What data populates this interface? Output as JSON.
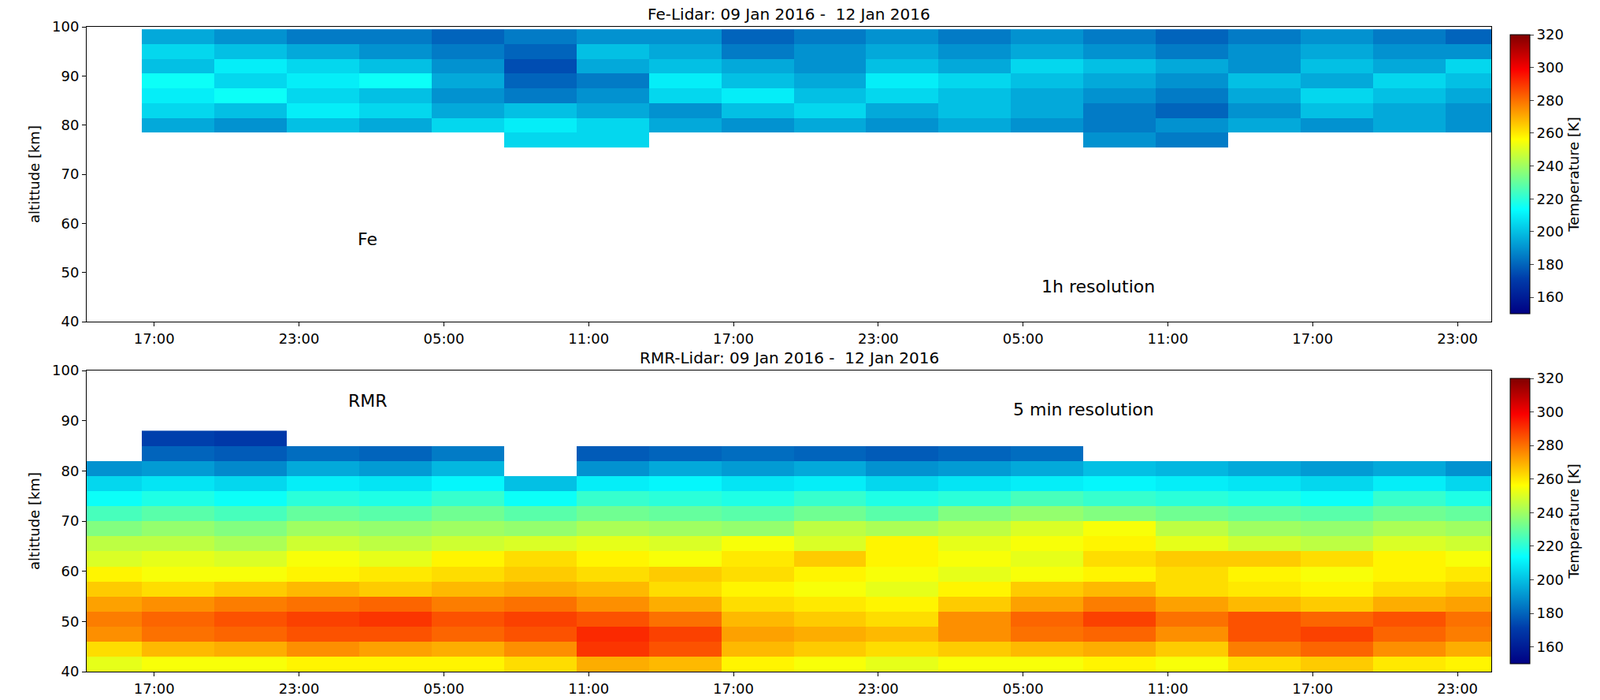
{
  "chart_data": [
    {
      "type": "heatmap",
      "title": "Fe-Lidar: 09 Jan 2016 -  12 Jan 2016",
      "y_label": "altittude [km]",
      "color": "Jet",
      "grid": false,
      "annotations": [
        "Fe",
        "1h resolution"
      ],
      "xlim": [
        14.2,
        72.4
      ],
      "xticks": [
        {
          "value": 17,
          "label": "17:00"
        },
        {
          "value": 23,
          "label": "23:00"
        },
        {
          "value": 29,
          "label": "05:00"
        },
        {
          "value": 35,
          "label": "11:00"
        },
        {
          "value": 41,
          "label": "17:00"
        },
        {
          "value": 47,
          "label": "23:00"
        },
        {
          "value": 53,
          "label": "05:00"
        },
        {
          "value": 59,
          "label": "11:00"
        },
        {
          "value": 65,
          "label": "17:00"
        },
        {
          "value": 71,
          "label": "23:00"
        }
      ],
      "ylim": [
        40,
        100
      ],
      "yticks": [
        40,
        50,
        60,
        70,
        80,
        90,
        100
      ],
      "colorbar": {
        "range": [
          150,
          320
        ],
        "ticks": [
          160,
          180,
          200,
          220,
          240,
          260,
          280,
          300,
          320
        ],
        "title": "Temperature [K]"
      },
      "x": [
        15,
        18,
        21,
        24,
        27,
        30,
        33,
        36,
        39,
        42,
        45,
        48,
        51,
        54,
        57,
        60,
        63,
        66,
        69,
        72
      ],
      "y": [
        77,
        80,
        83,
        86,
        89,
        92,
        95,
        98
      ],
      "z": [
        [
          null,
          null,
          null,
          null,
          null,
          null,
          205,
          205,
          null,
          null,
          null,
          null,
          null,
          null,
          190,
          185,
          null,
          null,
          null,
          null
        ],
        [
          null,
          195,
          190,
          200,
          195,
          205,
          210,
          205,
          195,
          190,
          195,
          190,
          195,
          190,
          185,
          190,
          195,
          190,
          195,
          190
        ],
        [
          null,
          205,
          200,
          210,
          205,
          195,
          200,
          195,
          190,
          200,
          205,
          195,
          200,
          195,
          185,
          180,
          190,
          200,
          195,
          190
        ],
        [
          null,
          210,
          215,
          205,
          200,
          190,
          185,
          190,
          205,
          210,
          200,
          205,
          200,
          195,
          190,
          185,
          195,
          205,
          200,
          195
        ],
        [
          null,
          215,
          205,
          210,
          215,
          195,
          180,
          185,
          210,
          200,
          195,
          210,
          205,
          200,
          195,
          190,
          200,
          195,
          205,
          200
        ],
        [
          null,
          200,
          210,
          205,
          200,
          190,
          175,
          195,
          200,
          195,
          190,
          200,
          195,
          205,
          200,
          195,
          190,
          200,
          195,
          205
        ],
        [
          null,
          205,
          200,
          195,
          190,
          185,
          180,
          200,
          195,
          185,
          190,
          195,
          190,
          195,
          190,
          185,
          190,
          195,
          190,
          190
        ],
        [
          null,
          195,
          190,
          185,
          185,
          180,
          185,
          190,
          190,
          180,
          185,
          190,
          185,
          190,
          185,
          180,
          185,
          190,
          185,
          180
        ]
      ]
    },
    {
      "type": "heatmap",
      "title": "RMR-Lidar: 09 Jan 2016 -  12 Jan 2016",
      "y_label": "altittude [km]",
      "color": "Jet",
      "grid": false,
      "annotations": [
        "RMR",
        "5 min resolution"
      ],
      "xlim": [
        14.2,
        72.4
      ],
      "xticks": [
        {
          "value": 17,
          "label": "17:00"
        },
        {
          "value": 23,
          "label": "23:00"
        },
        {
          "value": 29,
          "label": "05:00"
        },
        {
          "value": 35,
          "label": "11:00"
        },
        {
          "value": 41,
          "label": "17:00"
        },
        {
          "value": 47,
          "label": "23:00"
        },
        {
          "value": 53,
          "label": "05:00"
        },
        {
          "value": 59,
          "label": "11:00"
        },
        {
          "value": 65,
          "label": "17:00"
        },
        {
          "value": 71,
          "label": "23:00"
        }
      ],
      "ylim": [
        40,
        100
      ],
      "yticks": [
        40,
        50,
        60,
        70,
        80,
        90,
        100
      ],
      "colorbar": {
        "range": [
          150,
          320
        ],
        "ticks": [
          160,
          180,
          200,
          220,
          240,
          260,
          280,
          300,
          320
        ],
        "title": "Temperature [K]"
      },
      "x": [
        15,
        18,
        21,
        24,
        27,
        30,
        33,
        36,
        39,
        42,
        45,
        48,
        51,
        54,
        57,
        60,
        63,
        66,
        69,
        72
      ],
      "y": [
        41.5,
        44.5,
        47.5,
        50.5,
        53.5,
        56.5,
        59.5,
        62.5,
        65.5,
        68.5,
        71.5,
        74.5,
        77.5,
        80.5,
        83.5,
        86.5
      ],
      "z": [
        [
          252,
          255,
          255,
          258,
          258,
          258,
          262,
          270,
          268,
          258,
          255,
          252,
          255,
          255,
          258,
          255,
          262,
          265,
          260,
          258
        ],
        [
          262,
          268,
          270,
          275,
          272,
          270,
          275,
          290,
          285,
          268,
          265,
          262,
          265,
          268,
          270,
          265,
          278,
          282,
          275,
          270
        ],
        [
          275,
          280,
          282,
          285,
          285,
          282,
          285,
          292,
          288,
          272,
          270,
          268,
          275,
          280,
          282,
          275,
          285,
          288,
          282,
          278
        ],
        [
          278,
          282,
          285,
          288,
          290,
          285,
          288,
          285,
          280,
          268,
          265,
          262,
          275,
          282,
          288,
          280,
          285,
          282,
          285,
          280
        ],
        [
          272,
          275,
          278,
          280,
          282,
          278,
          280,
          275,
          270,
          262,
          260,
          258,
          265,
          272,
          278,
          272,
          268,
          265,
          270,
          272
        ],
        [
          265,
          262,
          265,
          268,
          265,
          268,
          270,
          268,
          262,
          258,
          255,
          252,
          258,
          265,
          268,
          262,
          260,
          258,
          262,
          265
        ],
        [
          258,
          255,
          255,
          258,
          260,
          262,
          265,
          262,
          265,
          262,
          258,
          255,
          252,
          255,
          258,
          262,
          258,
          255,
          258,
          260
        ],
        [
          250,
          252,
          250,
          255,
          252,
          258,
          262,
          258,
          255,
          260,
          265,
          258,
          255,
          252,
          262,
          265,
          265,
          262,
          258,
          255
        ],
        [
          245,
          245,
          242,
          248,
          245,
          248,
          250,
          252,
          250,
          255,
          250,
          258,
          252,
          255,
          258,
          252,
          248,
          245,
          250,
          248
        ],
        [
          235,
          238,
          235,
          240,
          238,
          240,
          238,
          242,
          240,
          238,
          245,
          242,
          245,
          250,
          255,
          245,
          240,
          238,
          242,
          240
        ],
        [
          225,
          228,
          225,
          230,
          228,
          232,
          228,
          232,
          230,
          228,
          232,
          228,
          235,
          238,
          235,
          232,
          230,
          228,
          232,
          230
        ],
        [
          215,
          218,
          215,
          220,
          218,
          222,
          215,
          222,
          220,
          218,
          222,
          218,
          220,
          225,
          222,
          220,
          218,
          215,
          222,
          218
        ],
        [
          205,
          208,
          205,
          210,
          208,
          212,
          200,
          210,
          212,
          208,
          210,
          205,
          208,
          210,
          212,
          210,
          208,
          205,
          210,
          205
        ],
        [
          190,
          192,
          188,
          195,
          192,
          198,
          null,
          190,
          195,
          192,
          195,
          190,
          192,
          195,
          200,
          198,
          195,
          192,
          195,
          190
        ],
        [
          null,
          180,
          178,
          182,
          180,
          185,
          null,
          178,
          180,
          182,
          180,
          178,
          180,
          182,
          null,
          null,
          null,
          null,
          null,
          null
        ],
        [
          null,
          172,
          170,
          null,
          null,
          null,
          null,
          null,
          null,
          null,
          null,
          null,
          null,
          null,
          null,
          null,
          null,
          null,
          null,
          null
        ]
      ]
    }
  ]
}
